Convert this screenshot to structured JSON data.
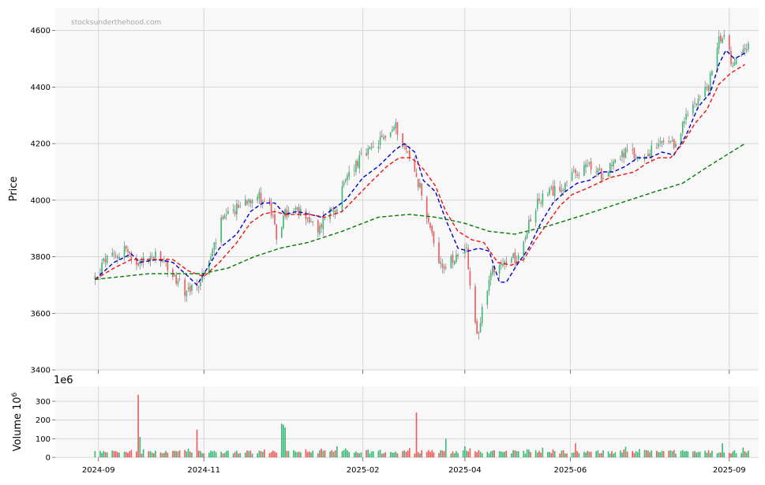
{
  "watermark": "stocksunderthehood.com",
  "chart_data": [
    {
      "type": "candlestick",
      "panel": "price",
      "ylabel": "Price",
      "ylim": [
        3400,
        4680
      ],
      "yticks": [
        3400,
        3600,
        3800,
        4000,
        4200,
        4400,
        4600
      ],
      "xlim": [
        "2024-08-07",
        "2025-09-18"
      ],
      "grid": true,
      "up_color": "#3cb878",
      "down_color": "#f25a5a",
      "series": [
        {
          "name": "",
          "role": "ma-short",
          "color": "#0000cc",
          "style": "dashed",
          "points": [
            [
              "2024-08-30",
              3720
            ],
            [
              "2024-09-10",
              3780
            ],
            [
              "2024-09-20",
              3810
            ],
            [
              "2024-09-25",
              3780
            ],
            [
              "2024-10-05",
              3790
            ],
            [
              "2024-10-14",
              3780
            ],
            [
              "2024-10-23",
              3730
            ],
            [
              "2024-10-28",
              3700
            ],
            [
              "2024-11-02",
              3750
            ],
            [
              "2024-11-10",
              3830
            ],
            [
              "2024-11-20",
              3880
            ],
            [
              "2024-11-28",
              3960
            ],
            [
              "2024-12-05",
              3990
            ],
            [
              "2024-12-12",
              3990
            ],
            [
              "2024-12-18",
              3950
            ],
            [
              "2024-12-25",
              3960
            ],
            [
              "2025-01-01",
              3950
            ],
            [
              "2025-01-08",
              3940
            ],
            [
              "2025-01-15",
              3970
            ],
            [
              "2025-01-22",
              4000
            ],
            [
              "2025-02-01",
              4080
            ],
            [
              "2025-02-10",
              4120
            ],
            [
              "2025-02-20",
              4180
            ],
            [
              "2025-02-25",
              4200
            ],
            [
              "2025-03-03",
              4170
            ],
            [
              "2025-03-08",
              4070
            ],
            [
              "2025-03-15",
              4030
            ],
            [
              "2025-03-21",
              3930
            ],
            [
              "2025-03-28",
              3830
            ],
            [
              "2025-04-03",
              3820
            ],
            [
              "2025-04-09",
              3830
            ],
            [
              "2025-04-15",
              3820
            ],
            [
              "2025-04-21",
              3710
            ],
            [
              "2025-04-25",
              3710
            ],
            [
              "2025-05-01",
              3770
            ],
            [
              "2025-05-08",
              3830
            ],
            [
              "2025-05-15",
              3920
            ],
            [
              "2025-05-22",
              3990
            ],
            [
              "2025-05-29",
              4030
            ],
            [
              "2025-06-05",
              4060
            ],
            [
              "2025-06-12",
              4070
            ],
            [
              "2025-06-19",
              4100
            ],
            [
              "2025-06-26",
              4100
            ],
            [
              "2025-07-03",
              4120
            ],
            [
              "2025-07-10",
              4150
            ],
            [
              "2025-07-17",
              4150
            ],
            [
              "2025-07-24",
              4170
            ],
            [
              "2025-07-31",
              4160
            ],
            [
              "2025-08-07",
              4230
            ],
            [
              "2025-08-14",
              4330
            ],
            [
              "2025-08-21",
              4380
            ],
            [
              "2025-08-26",
              4480
            ],
            [
              "2025-08-30",
              4530
            ],
            [
              "2025-09-04",
              4500
            ],
            [
              "2025-09-10",
              4520
            ]
          ]
        },
        {
          "name": "",
          "role": "ma-medium",
          "color": "#ee1111",
          "style": "dashed",
          "points": [
            [
              "2024-08-30",
              3720
            ],
            [
              "2024-09-10",
              3760
            ],
            [
              "2024-09-20",
              3790
            ],
            [
              "2024-10-01",
              3790
            ],
            [
              "2024-10-14",
              3790
            ],
            [
              "2024-10-23",
              3750
            ],
            [
              "2024-11-01",
              3730
            ],
            [
              "2024-11-10",
              3780
            ],
            [
              "2024-11-20",
              3850
            ],
            [
              "2024-11-28",
              3920
            ],
            [
              "2024-12-05",
              3950
            ],
            [
              "2024-12-12",
              3960
            ],
            [
              "2024-12-18",
              3950
            ],
            [
              "2024-12-25",
              3950
            ],
            [
              "2025-01-01",
              3950
            ],
            [
              "2025-01-10",
              3940
            ],
            [
              "2025-01-20",
              3960
            ],
            [
              "2025-01-28",
              4010
            ],
            [
              "2025-02-05",
              4060
            ],
            [
              "2025-02-15",
              4120
            ],
            [
              "2025-02-22",
              4150
            ],
            [
              "2025-03-01",
              4150
            ],
            [
              "2025-03-08",
              4110
            ],
            [
              "2025-03-15",
              4050
            ],
            [
              "2025-03-21",
              3960
            ],
            [
              "2025-03-28",
              3890
            ],
            [
              "2025-04-05",
              3860
            ],
            [
              "2025-04-12",
              3850
            ],
            [
              "2025-04-20",
              3780
            ],
            [
              "2025-04-28",
              3770
            ],
            [
              "2025-05-05",
              3790
            ],
            [
              "2025-05-12",
              3860
            ],
            [
              "2025-05-19",
              3920
            ],
            [
              "2025-05-26",
              3980
            ],
            [
              "2025-06-02",
              4020
            ],
            [
              "2025-06-10",
              4040
            ],
            [
              "2025-06-17",
              4060
            ],
            [
              "2025-06-24",
              4080
            ],
            [
              "2025-07-01",
              4090
            ],
            [
              "2025-07-08",
              4100
            ],
            [
              "2025-07-15",
              4130
            ],
            [
              "2025-07-22",
              4150
            ],
            [
              "2025-07-29",
              4150
            ],
            [
              "2025-08-05",
              4200
            ],
            [
              "2025-08-12",
              4270
            ],
            [
              "2025-08-19",
              4320
            ],
            [
              "2025-08-26",
              4410
            ],
            [
              "2025-09-02",
              4450
            ],
            [
              "2025-09-10",
              4480
            ]
          ]
        },
        {
          "name": "",
          "role": "ma-long",
          "color": "#007a00",
          "style": "dashed",
          "points": [
            [
              "2024-08-30",
              3720
            ],
            [
              "2024-09-30",
              3740
            ],
            [
              "2024-10-31",
              3740
            ],
            [
              "2024-11-15",
              3760
            ],
            [
              "2024-11-30",
              3800
            ],
            [
              "2024-12-15",
              3830
            ],
            [
              "2024-12-31",
              3850
            ],
            [
              "2025-01-20",
              3890
            ],
            [
              "2025-02-10",
              3940
            ],
            [
              "2025-02-28",
              3950
            ],
            [
              "2025-03-15",
              3940
            ],
            [
              "2025-03-31",
              3920
            ],
            [
              "2025-04-15",
              3890
            ],
            [
              "2025-04-30",
              3880
            ],
            [
              "2025-05-20",
              3910
            ],
            [
              "2025-06-10",
              3950
            ],
            [
              "2025-06-30",
              3990
            ],
            [
              "2025-07-20",
              4030
            ],
            [
              "2025-08-05",
              4060
            ],
            [
              "2025-08-20",
              4120
            ],
            [
              "2025-09-10",
              4200
            ]
          ]
        }
      ],
      "candles_summary": "daily OHLC candles following the price path",
      "price_path": [
        [
          "2024-08-30",
          3725
        ],
        [
          "2024-09-05",
          3790
        ],
        [
          "2024-09-12",
          3800
        ],
        [
          "2024-09-16",
          3840
        ],
        [
          "2024-09-20",
          3780
        ],
        [
          "2024-09-27",
          3790
        ],
        [
          "2024-10-04",
          3800
        ],
        [
          "2024-10-10",
          3770
        ],
        [
          "2024-10-16",
          3720
        ],
        [
          "2024-10-21",
          3680
        ],
        [
          "2024-10-28",
          3690
        ],
        [
          "2024-11-04",
          3780
        ],
        [
          "2024-11-11",
          3920
        ],
        [
          "2024-11-18",
          3960
        ],
        [
          "2024-11-25",
          4000
        ],
        [
          "2024-12-02",
          4020
        ],
        [
          "2024-12-09",
          3980
        ],
        [
          "2024-12-13",
          3870
        ],
        [
          "2024-12-18",
          3950
        ],
        [
          "2024-12-24",
          3960
        ],
        [
          "2024-12-30",
          3950
        ],
        [
          "2025-01-06",
          3880
        ],
        [
          "2025-01-10",
          3950
        ],
        [
          "2025-01-17",
          3980
        ],
        [
          "2025-01-24",
          4100
        ],
        [
          "2025-01-31",
          4150
        ],
        [
          "2025-02-07",
          4180
        ],
        [
          "2025-02-14",
          4230
        ],
        [
          "2025-02-20",
          4260
        ],
        [
          "2025-02-26",
          4180
        ],
        [
          "2025-03-03",
          4100
        ],
        [
          "2025-03-07",
          4030
        ],
        [
          "2025-03-12",
          3900
        ],
        [
          "2025-03-17",
          3790
        ],
        [
          "2025-03-21",
          3760
        ],
        [
          "2025-03-28",
          3820
        ],
        [
          "2025-04-02",
          3830
        ],
        [
          "2025-04-04",
          3680
        ],
        [
          "2025-04-08",
          3510
        ],
        [
          "2025-04-11",
          3620
        ],
        [
          "2025-04-17",
          3760
        ],
        [
          "2025-04-24",
          3780
        ],
        [
          "2025-05-01",
          3800
        ],
        [
          "2025-05-08",
          3920
        ],
        [
          "2025-05-14",
          4000
        ],
        [
          "2025-05-22",
          4030
        ],
        [
          "2025-05-29",
          4060
        ],
        [
          "2025-06-05",
          4100
        ],
        [
          "2025-06-12",
          4120
        ],
        [
          "2025-06-19",
          4090
        ],
        [
          "2025-06-26",
          4140
        ],
        [
          "2025-07-03",
          4170
        ],
        [
          "2025-07-10",
          4150
        ],
        [
          "2025-07-17",
          4170
        ],
        [
          "2025-07-24",
          4200
        ],
        [
          "2025-07-31",
          4190
        ],
        [
          "2025-08-06",
          4280
        ],
        [
          "2025-08-13",
          4360
        ],
        [
          "2025-08-20",
          4400
        ],
        [
          "2025-08-25",
          4550
        ],
        [
          "2025-08-29",
          4600
        ],
        [
          "2025-09-03",
          4460
        ],
        [
          "2025-09-08",
          4520
        ],
        [
          "2025-09-12",
          4550
        ]
      ]
    },
    {
      "type": "bar",
      "panel": "volume",
      "ylabel": "Volume  10",
      "ylabel_sup": "6",
      "offset_label": "1e6",
      "ylim": [
        0,
        380
      ],
      "yticks": [
        0,
        100,
        200,
        300
      ],
      "xticks": [
        "2024-09-01",
        "2024-11-01",
        "2025-02-01",
        "2025-04-01",
        "2025-06-01",
        "2025-09-01"
      ],
      "xtick_labels": [
        "2024-09",
        "2024-11",
        "2025-02",
        "2025-04",
        "2025-06",
        "2025-09"
      ],
      "spikes": [
        [
          "2024-09-24",
          335
        ],
        [
          "2024-09-25",
          110
        ],
        [
          "2024-10-28",
          148
        ],
        [
          "2024-12-16",
          180
        ],
        [
          "2024-12-17",
          175
        ],
        [
          "2024-12-18",
          160
        ],
        [
          "2025-03-04",
          240
        ],
        [
          "2025-03-21",
          100
        ],
        [
          "2025-06-04",
          75
        ],
        [
          "2025-08-28",
          75
        ]
      ],
      "typical_volume": [
        20,
        60
      ]
    }
  ]
}
